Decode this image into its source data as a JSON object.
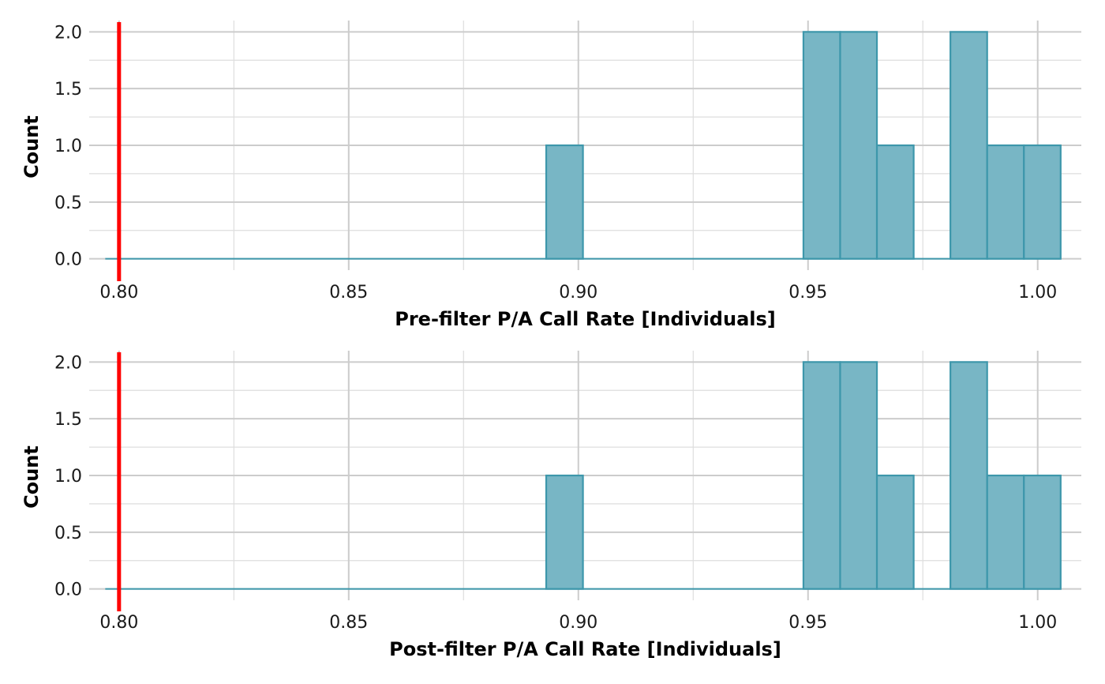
{
  "colors": {
    "bar_fill": "#78b6c5",
    "bar_stroke": "#3d97ab",
    "threshold": "#ff0000",
    "grid_major": "#cccccc",
    "grid_minor": "#dedede"
  },
  "chart_data": [
    {
      "type": "bar",
      "subtype": "histogram",
      "xlabel": "Pre-filter P/A Call Rate [Individuals]",
      "ylabel": "Count",
      "xlim": [
        0.7935,
        1.0095
      ],
      "ylim": [
        -0.1,
        2.1
      ],
      "xticks": [
        0.8,
        0.85,
        0.9,
        0.95,
        1.0
      ],
      "xtick_labels": [
        "0.80",
        "0.85",
        "0.90",
        "0.95",
        "1.00"
      ],
      "yticks": [
        0.0,
        0.5,
        1.0,
        1.5,
        2.0
      ],
      "ytick_labels": [
        "0.0",
        "0.5",
        "1.0",
        "1.5",
        "2.0"
      ],
      "threshold_x": 0.8,
      "bin_start": 0.797,
      "bin_width": 0.008,
      "counts": [
        0,
        0,
        0,
        0,
        0,
        0,
        0,
        0,
        0,
        0,
        0,
        0,
        1,
        0,
        0,
        0,
        0,
        0,
        0,
        2,
        2,
        1,
        0,
        2,
        1,
        1
      ],
      "grid": true
    },
    {
      "type": "bar",
      "subtype": "histogram",
      "xlabel": "Post-filter P/A Call Rate [Individuals]",
      "ylabel": "Count",
      "xlim": [
        0.7935,
        1.0095
      ],
      "ylim": [
        -0.1,
        2.1
      ],
      "xticks": [
        0.8,
        0.85,
        0.9,
        0.95,
        1.0
      ],
      "xtick_labels": [
        "0.80",
        "0.85",
        "0.90",
        "0.95",
        "1.00"
      ],
      "yticks": [
        0.0,
        0.5,
        1.0,
        1.5,
        2.0
      ],
      "ytick_labels": [
        "0.0",
        "0.5",
        "1.0",
        "1.5",
        "2.0"
      ],
      "threshold_x": 0.8,
      "bin_start": 0.797,
      "bin_width": 0.008,
      "counts": [
        0,
        0,
        0,
        0,
        0,
        0,
        0,
        0,
        0,
        0,
        0,
        0,
        1,
        0,
        0,
        0,
        0,
        0,
        0,
        2,
        2,
        1,
        0,
        2,
        1,
        1
      ],
      "grid": true
    }
  ]
}
